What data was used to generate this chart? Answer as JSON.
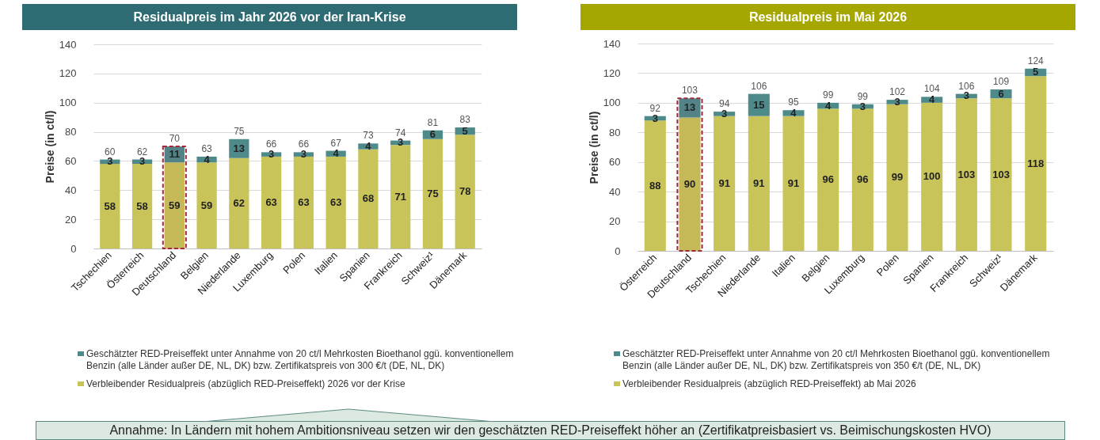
{
  "chart_data": [
    {
      "type": "bar",
      "title": "Residualpreis im Jahr 2026 vor der Iran-Krise",
      "ylabel": "Preise (in ct/l)",
      "stacked": true,
      "data_labels": true,
      "grid": "y",
      "legend": "bottom",
      "categories": [
        "Tschechien",
        "Österreich",
        "Deutschland",
        "Belgien",
        "Niederlande",
        "Luxemburg",
        "Polen",
        "Italien",
        "Spanien",
        "Frankreich",
        "Schweiz¹",
        "Dänemark"
      ],
      "series": [
        {
          "name": "Verbleibender Residualpreis (abzüglich RED-Preiseffekt) 2026 vor der Krise",
          "color": "#c9c45a",
          "values": [
            58,
            58,
            59,
            59,
            62,
            63,
            63,
            63,
            68,
            71,
            75,
            78
          ]
        },
        {
          "name": "Geschätzter RED-Preiseffekt unter Annahme von 20 ct/l Mehrkosten Bioethanol ggü. konventionellem Benzin (alle Länder außer DE, NL, DK) bzw. Zertifikatspreis von 300 €/t (DE, NL, DK)",
          "color": "#4f8a8b",
          "values": [
            3,
            3,
            11,
            4,
            13,
            3,
            3,
            4,
            4,
            3,
            6,
            5
          ]
        }
      ],
      "totals": [
        "60",
        "62",
        "70",
        "63",
        "75",
        "66",
        "66",
        "67",
        "73",
        "74",
        "81",
        "83"
      ],
      "ylim": [
        0,
        140
      ],
      "yticks": [
        0,
        20,
        40,
        60,
        80,
        100,
        120,
        140
      ],
      "bands": [
        {
          "axis": "x",
          "from": "Deutschland",
          "to": "Deutschland",
          "color": "#a0283c"
        }
      ],
      "annotations": [
        "Annahme: In Ländern mit hohem Ambitionsniveau setzen wir den geschätzten RED-Preiseffekt höher an (Zertifikatpreisbasiert vs. Beimischungskosten HVO)"
      ]
    },
    {
      "type": "bar",
      "title": "Residualpreis im Mai 2026",
      "ylabel": "Preise (in ct/l)",
      "stacked": true,
      "data_labels": true,
      "grid": "y",
      "legend": "bottom",
      "categories": [
        "Österreich",
        "Deutschland",
        "Tschechien",
        "Niederlande",
        "Italien",
        "Belgien",
        "Luxemburg",
        "Polen",
        "Spanien",
        "Frankreich",
        "Schweiz¹",
        "Dänemark"
      ],
      "series": [
        {
          "name": "Verbleibender Residualpreis (abzüglich RED-Preiseffekt) ab Mai 2026",
          "color": "#c9c45a",
          "values": [
            88,
            90,
            91,
            91,
            91,
            96,
            96,
            99,
            100,
            103,
            103,
            118
          ]
        },
        {
          "name": "Geschätzter RED-Preiseffekt unter Annahme von 20 ct/l Mehrkosten Bioethanol ggü. konventionellem Benzin (alle Länder außer DE, NL, DK) bzw. Zertifikatspreis von 350 €/t (DE, NL, DK)",
          "color": "#4f8a8b",
          "values": [
            3,
            13,
            3,
            15,
            4,
            4,
            3,
            3,
            4,
            3,
            6,
            5
          ]
        }
      ],
      "totals": [
        "92",
        "103",
        "94",
        "106",
        "95",
        "99",
        "99",
        "102",
        "104",
        "106",
        "109",
        "124"
      ],
      "ylim": [
        0,
        140
      ],
      "yticks": [
        0,
        20,
        40,
        60,
        80,
        100,
        120,
        140
      ],
      "bands": [
        {
          "axis": "x",
          "from": "Deutschland",
          "to": "Deutschland",
          "color": "#a0283c"
        }
      ]
    }
  ]
}
